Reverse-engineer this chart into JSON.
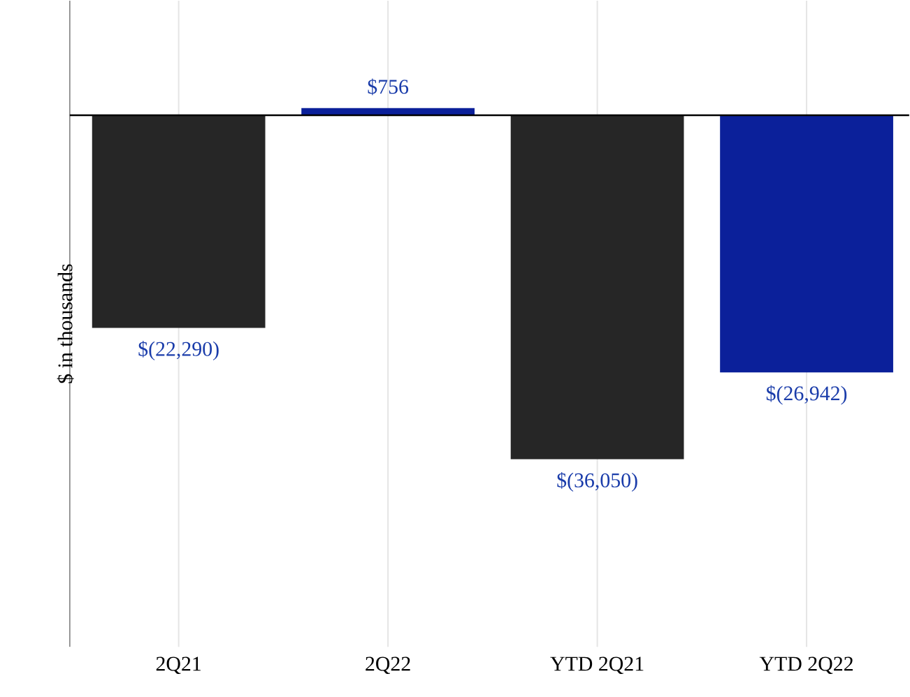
{
  "chart_data": {
    "type": "bar",
    "ylabel": "$ in thousands",
    "categories": [
      "2Q21",
      "2Q22",
      "YTD 2Q21",
      "YTD 2Q22"
    ],
    "values": [
      -22290,
      756,
      -36050,
      -26942
    ],
    "value_labels": [
      "$(22,290)",
      "$756",
      "$(36,050)",
      "$(26,942)"
    ],
    "colors": [
      "#262626",
      "#0b209a",
      "#262626",
      "#0b209a"
    ],
    "ylim": [
      -55700,
      12000
    ],
    "grid": "x"
  }
}
